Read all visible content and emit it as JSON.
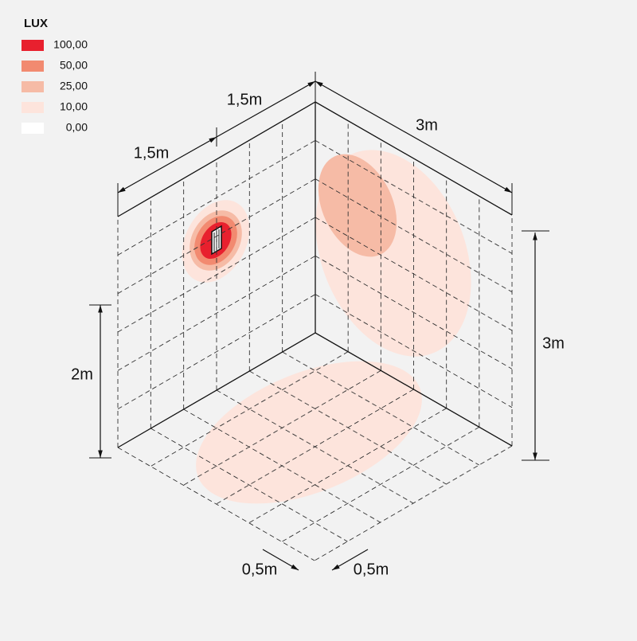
{
  "legend": {
    "title": "LUX",
    "items": [
      {
        "label": "100,00",
        "color": "#e8202e"
      },
      {
        "label": "50,00",
        "color": "#f28a70"
      },
      {
        "label": "25,00",
        "color": "#f6bba6"
      },
      {
        "label": "10,00",
        "color": "#fde4dc"
      },
      {
        "label": "0,00",
        "color": "#ffffff"
      }
    ]
  },
  "dimensions": {
    "left_width": "1,5m",
    "left_width_2": "1,5m",
    "right_width": "3m",
    "right_height": "3m",
    "left_height": "2m",
    "floor_grid_left": "0,5m",
    "floor_grid_right": "0,5m"
  }
}
